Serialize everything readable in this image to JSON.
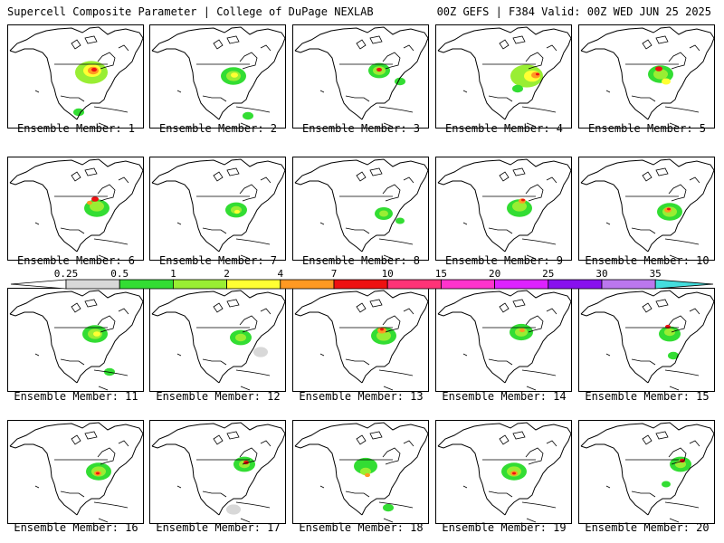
{
  "header": {
    "left": "Supercell Composite Parameter | College of DuPage NEXLAB",
    "right": "00Z GEFS | F384 Valid: 00Z WED JUN 25 2025"
  },
  "members": [
    {
      "label": "Ensemble Member: 1"
    },
    {
      "label": "Ensemble Member: 2"
    },
    {
      "label": "Ensemble Member: 3"
    },
    {
      "label": "Ensemble Member: 4"
    },
    {
      "label": "Ensemble Member: 5"
    },
    {
      "label": "Ensemble Member: 6"
    },
    {
      "label": "Ensemble Member: 7"
    },
    {
      "label": "Ensemble Member: 8"
    },
    {
      "label": "Ensemble Member: 9"
    },
    {
      "label": "Ensemble Member: 10"
    },
    {
      "label": "Ensemble Member: 11"
    },
    {
      "label": "Ensemble Member: 12"
    },
    {
      "label": "Ensemble Member: 13"
    },
    {
      "label": "Ensemble Member: 14"
    },
    {
      "label": "Ensemble Member: 15"
    },
    {
      "label": "Ensemble Member: 16"
    },
    {
      "label": "Ensemble Member: 17"
    },
    {
      "label": "Ensemble Member: 18"
    },
    {
      "label": "Ensemble Member: 19"
    },
    {
      "label": "Ensemble Member: 20"
    }
  ],
  "colorbar": {
    "ticks": [
      "0.25",
      "0.5",
      "1",
      "2",
      "4",
      "7",
      "10",
      "15",
      "20",
      "25",
      "30",
      "35"
    ],
    "colors": [
      "#ffffff",
      "#d8d8d8",
      "#33dd33",
      "#99ee33",
      "#ffff33",
      "#ff9922",
      "#ee1111",
      "#ff3377",
      "#ff33cc",
      "#dd22ff",
      "#8811ee",
      "#bb77ee",
      "#44dddd"
    ]
  }
}
